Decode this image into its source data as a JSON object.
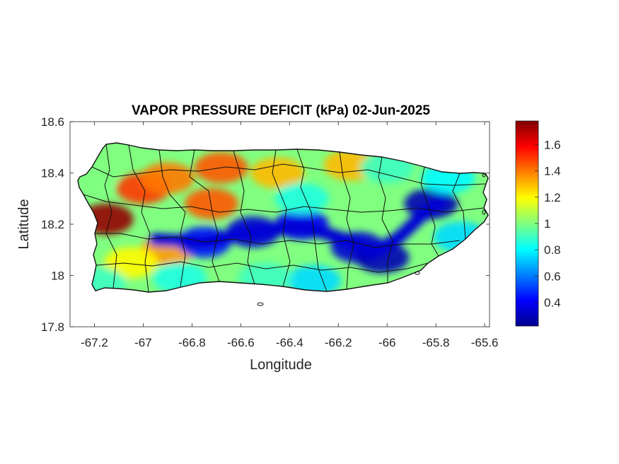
{
  "chart_data": {
    "type": "heatmap",
    "title": "VAPOR PRESSURE DEFICIT (kPa) 02-Jun-2025",
    "xlabel": "Longitude",
    "ylabel": "Latitude",
    "xlim": [
      -67.3,
      -65.58
    ],
    "ylim": [
      17.8,
      18.6
    ],
    "x_ticks": [
      -67.2,
      -67,
      -66.8,
      -66.6,
      -66.4,
      -66.2,
      -66,
      -65.8,
      -65.6
    ],
    "x_tick_labels": [
      "-67.2",
      "-67",
      "-66.8",
      "-66.6",
      "-66.4",
      "-66.2",
      "-66",
      "-65.8",
      "-65.6"
    ],
    "y_ticks": [
      17.8,
      18,
      18.2,
      18.4,
      18.6
    ],
    "y_tick_labels": [
      "17.8",
      "18",
      "18.2",
      "18.4",
      "18.6"
    ],
    "colorbar": {
      "colormap": "jet",
      "range": [
        0.22,
        1.78
      ],
      "ticks": [
        0.4,
        0.6,
        0.8,
        1,
        1.2,
        1.4,
        1.6
      ],
      "tick_labels": [
        "0.4",
        "0.6",
        "0.8",
        "1",
        "1.2",
        "1.4",
        "1.6"
      ]
    },
    "features": [
      {
        "lon": -67.15,
        "lat": 18.22,
        "value": 1.75
      },
      {
        "lon": -67.0,
        "lat": 18.34,
        "value": 1.5
      },
      {
        "lon": -66.9,
        "lat": 18.1,
        "value": 1.35
      },
      {
        "lon": -66.68,
        "lat": 18.42,
        "value": 1.45
      },
      {
        "lon": -66.72,
        "lat": 18.28,
        "value": 1.45
      },
      {
        "lon": -66.9,
        "lat": 18.38,
        "value": 1.4
      },
      {
        "lon": -67.05,
        "lat": 18.05,
        "value": 1.2
      },
      {
        "lon": -66.45,
        "lat": 18.4,
        "value": 1.3
      },
      {
        "lon": -66.15,
        "lat": 18.43,
        "value": 1.3
      },
      {
        "lon": -66.75,
        "lat": 18.13,
        "value": 0.45
      },
      {
        "lon": -66.55,
        "lat": 18.17,
        "value": 0.35
      },
      {
        "lon": -66.35,
        "lat": 18.2,
        "value": 0.4
      },
      {
        "lon": -66.12,
        "lat": 18.11,
        "value": 0.35
      },
      {
        "lon": -66.02,
        "lat": 18.07,
        "value": 0.3
      },
      {
        "lon": -65.82,
        "lat": 18.28,
        "value": 0.3
      },
      {
        "lon": -65.7,
        "lat": 18.15,
        "value": 0.75
      },
      {
        "lon": -66.3,
        "lat": 17.98,
        "value": 0.75
      },
      {
        "lon": -66.5,
        "lat": 17.99,
        "value": 0.9
      },
      {
        "lon": -66.85,
        "lat": 17.99,
        "value": 0.85
      },
      {
        "lon": -67.18,
        "lat": 17.97,
        "value": 0.9
      },
      {
        "lon": -66.0,
        "lat": 18.42,
        "value": 0.9
      },
      {
        "lon": -65.75,
        "lat": 18.38,
        "value": 0.8
      },
      {
        "lon": -66.35,
        "lat": 18.3,
        "value": 0.85
      },
      {
        "lon": -67.22,
        "lat": 18.38,
        "value": 1.0
      }
    ]
  }
}
